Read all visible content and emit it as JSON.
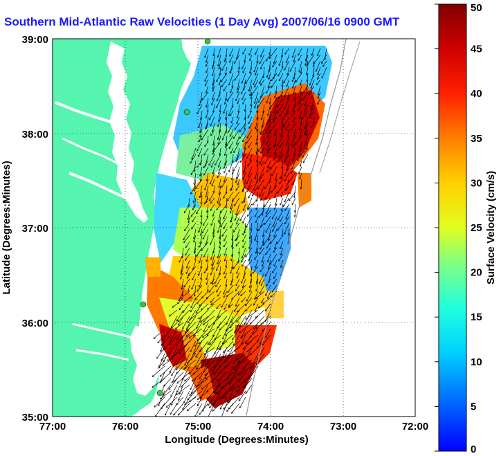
{
  "title": "Southern Mid-Atlantic Raw Velocities (1 Day Avg) 2007/06/16 0900 GMT",
  "map": {
    "xlabel": "Longitude (Degrees:Minutes)",
    "ylabel": "Latitude (Degrees:Minutes)",
    "lon_ticks": [
      "77:00",
      "76:00",
      "75:00",
      "74:00",
      "73:00",
      "72:00"
    ],
    "lat_ticks": [
      "39:00",
      "38:00",
      "37:00",
      "36:00",
      "35:00"
    ],
    "lon_range": [
      -77,
      -72
    ],
    "lat_range": [
      35,
      39
    ],
    "land_color": "#55f5b0",
    "grid": "dotted"
  },
  "colorbar": {
    "label": "Surface Velocity (cm/s)",
    "ticks": [
      "50",
      "45",
      "40",
      "35",
      "30",
      "25",
      "20",
      "15",
      "10",
      "5",
      "0"
    ],
    "range": [
      0,
      50
    ],
    "colormap": "jet"
  },
  "chart_data": {
    "type": "heatmap",
    "title": "Southern Mid-Atlantic Raw Velocities (1 Day Avg) 2007/06/16 0900 GMT",
    "xlabel": "Longitude (Degrees:Minutes)",
    "ylabel": "Latitude (Degrees:Minutes)",
    "xlim": [
      -77,
      -72
    ],
    "ylim": [
      35,
      39
    ],
    "clim": [
      0,
      50
    ],
    "grid": true
  }
}
